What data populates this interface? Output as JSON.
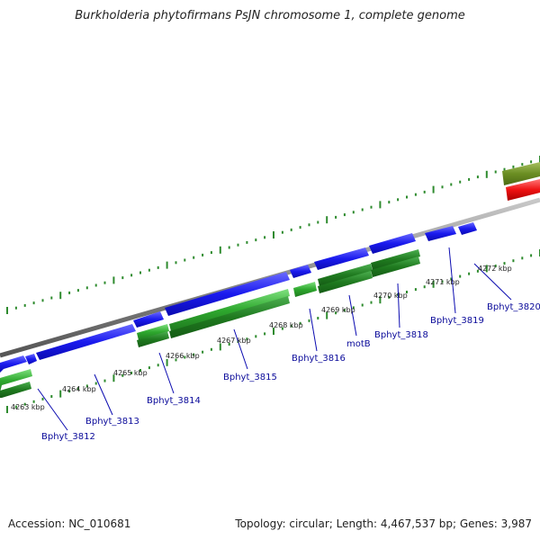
{
  "title": "Burkholderia phytofirmans PsJN chromosome 1, complete genome",
  "footer": {
    "accession": "Accession: NC_010681",
    "summary": "Topology: circular; Length: 4,467,537 bp; Genes: 3,987"
  },
  "colors": {
    "backbone": "#8a8a8a",
    "tick": "#2e8b2e",
    "forward_gene": "#1a1aee",
    "cds_green": "#2ea82e",
    "cds_dark_green": "#1f7a1f",
    "feature_olive": "#6b8e23",
    "feature_red": "#ee1111",
    "label_text": "#0a0a9a"
  },
  "kbp_labels": [
    "4263 kbp",
    "4264 kbp",
    "4265 kbp",
    "4266 kbp",
    "4267 kbp",
    "4268 kbp",
    "4269 kbp",
    "4270 kbp",
    "4271 kbp",
    "4272 kbp"
  ],
  "gene_labels": [
    "Bphyt_3812",
    "Bphyt_3813",
    "Bphyt_3814",
    "Bphyt_3815",
    "Bphyt_3816",
    "motB",
    "Bphyt_3818",
    "Bphyt_3819",
    "Bphyt_3820"
  ]
}
